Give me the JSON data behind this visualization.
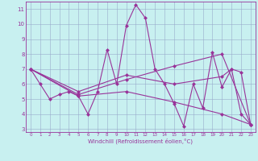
{
  "xlabel": "Windchill (Refroidissement éolien,°C)",
  "background_color": "#c8f0f0",
  "line_color": "#993399",
  "grid_color": "#99aacc",
  "xlim": [
    -0.5,
    23.5
  ],
  "ylim": [
    2.8,
    11.5
  ],
  "xticks": [
    0,
    1,
    2,
    3,
    4,
    5,
    6,
    7,
    8,
    9,
    10,
    11,
    12,
    13,
    14,
    15,
    16,
    17,
    18,
    19,
    20,
    21,
    22,
    23
  ],
  "yticks": [
    3,
    4,
    5,
    6,
    7,
    8,
    9,
    10,
    11
  ],
  "series1": [
    [
      0,
      7.0
    ],
    [
      1,
      6.0
    ],
    [
      2,
      5.0
    ],
    [
      3,
      5.3
    ],
    [
      4,
      5.5
    ],
    [
      5,
      5.2
    ],
    [
      6,
      4.0
    ],
    [
      7,
      5.5
    ],
    [
      8,
      8.3
    ],
    [
      9,
      6.0
    ],
    [
      10,
      9.9
    ],
    [
      11,
      11.3
    ],
    [
      12,
      10.4
    ],
    [
      13,
      7.0
    ],
    [
      14,
      6.0
    ],
    [
      15,
      4.7
    ],
    [
      16,
      3.2
    ],
    [
      17,
      6.0
    ],
    [
      18,
      4.4
    ],
    [
      19,
      8.1
    ],
    [
      20,
      5.8
    ],
    [
      21,
      7.0
    ],
    [
      22,
      4.0
    ],
    [
      23,
      3.3
    ]
  ],
  "series2": [
    [
      0,
      7.0
    ],
    [
      5,
      5.3
    ],
    [
      10,
      6.3
    ],
    [
      15,
      7.2
    ],
    [
      20,
      8.0
    ],
    [
      23,
      3.3
    ]
  ],
  "series3": [
    [
      0,
      7.0
    ],
    [
      5,
      5.5
    ],
    [
      10,
      6.6
    ],
    [
      15,
      6.0
    ],
    [
      20,
      6.5
    ],
    [
      21,
      7.0
    ],
    [
      22,
      6.8
    ],
    [
      23,
      3.3
    ]
  ],
  "series4": [
    [
      0,
      7.0
    ],
    [
      5,
      5.2
    ],
    [
      10,
      5.5
    ],
    [
      15,
      4.8
    ],
    [
      20,
      4.0
    ],
    [
      23,
      3.3
    ]
  ]
}
